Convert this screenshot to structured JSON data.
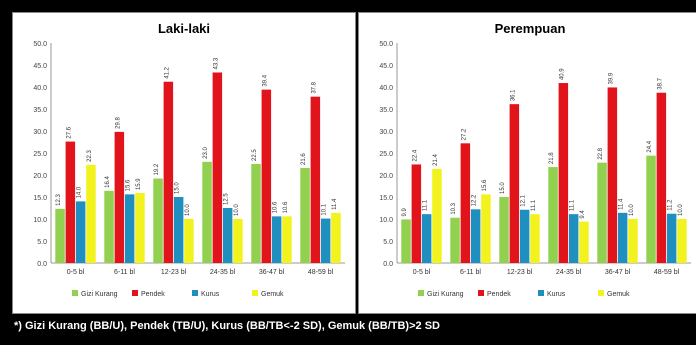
{
  "footnote": "*) Gizi Kurang (BB/U), Pendek (TB/U), Kurus (BB/TB<-2 SD), Gemuk (BB/TB)>2 SD",
  "colors": {
    "gizi_kurang": "#92d050",
    "pendek": "#e2141b",
    "kurus": "#1f8fbf",
    "gemuk": "#f2f21f"
  },
  "chart_data": [
    {
      "type": "bar",
      "title": "Laki-laki",
      "categories": [
        "0-5 bl",
        "6-11 bl",
        "12-23 bl",
        "24-35 bl",
        "36-47 bl",
        "48-59 bl"
      ],
      "ylim": [
        0,
        50
      ],
      "yticks": [
        "0.0",
        "5.0",
        "10.0",
        "15.0",
        "20.0",
        "25.0",
        "30.0",
        "35.0",
        "40.0",
        "45.0",
        "50.0"
      ],
      "legend_position": "bottom",
      "grid": false,
      "series": [
        {
          "name": "Gizi Kurang",
          "color": "#92d050",
          "values": [
            12.3,
            16.4,
            19.2,
            23.0,
            22.5,
            21.6
          ]
        },
        {
          "name": "Pendek",
          "color": "#e2141b",
          "values": [
            27.6,
            29.8,
            41.2,
            43.3,
            39.4,
            37.8
          ]
        },
        {
          "name": "Kurus",
          "color": "#1f8fbf",
          "values": [
            14.0,
            15.6,
            15.0,
            12.5,
            10.6,
            10.1
          ]
        },
        {
          "name": "Gemuk",
          "color": "#f2f21f",
          "values": [
            22.3,
            15.9,
            10.0,
            10.0,
            10.6,
            11.4
          ]
        }
      ]
    },
    {
      "type": "bar",
      "title": "Perempuan",
      "categories": [
        "0-5 bl",
        "6-11 bl",
        "12-23 bl",
        "24-35 bl",
        "36-47 bl",
        "48-59 bl"
      ],
      "ylim": [
        0,
        50
      ],
      "yticks": [
        "0.0",
        "5.0",
        "10.0",
        "15.0",
        "20.0",
        "25.0",
        "30.0",
        "35.0",
        "40.0",
        "45.0",
        "50.0"
      ],
      "legend_position": "bottom",
      "grid": false,
      "series": [
        {
          "name": "Gizi Kurang",
          "color": "#92d050",
          "values": [
            9.9,
            10.3,
            15.0,
            21.8,
            22.8,
            24.4
          ]
        },
        {
          "name": "Pendek",
          "color": "#e2141b",
          "values": [
            22.4,
            27.2,
            36.1,
            40.9,
            39.9,
            38.7
          ]
        },
        {
          "name": "Kurus",
          "color": "#1f8fbf",
          "values": [
            11.1,
            12.2,
            12.1,
            11.1,
            11.4,
            11.2
          ]
        },
        {
          "name": "Gemuk",
          "color": "#f2f21f",
          "values": [
            21.4,
            15.6,
            11.1,
            9.4,
            10.0,
            10.0
          ]
        }
      ]
    }
  ]
}
